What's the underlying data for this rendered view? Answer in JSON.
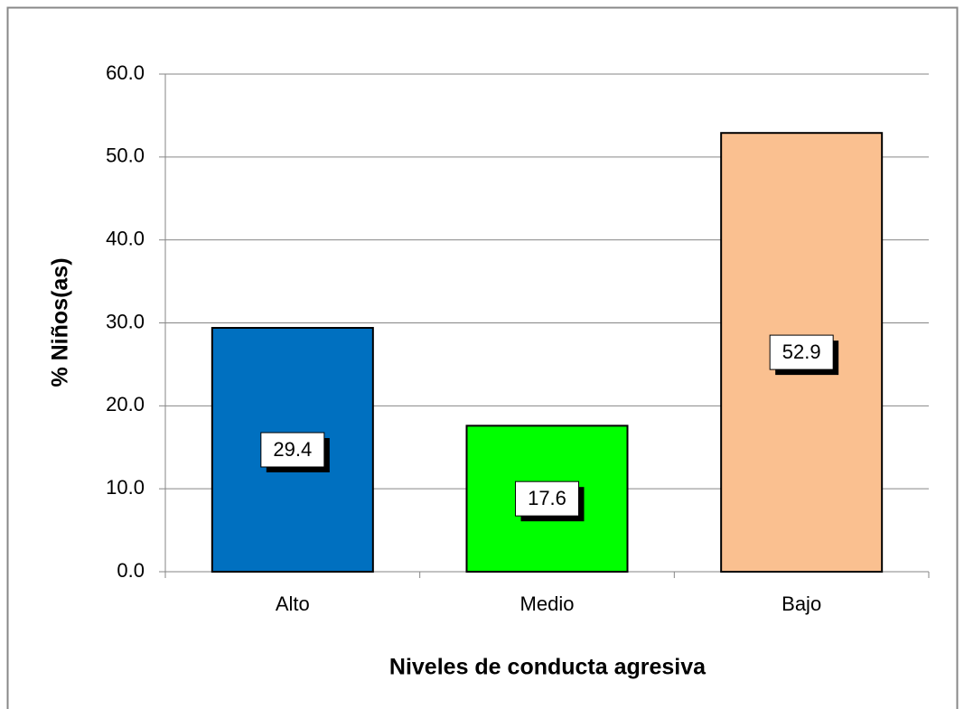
{
  "chart_data": {
    "type": "bar",
    "x_label": "Niveles de conducta agresiva",
    "y_label": "% Niños(as)",
    "categories": [
      "Alto",
      "Medio",
      "Bajo"
    ],
    "values": [
      29.4,
      17.6,
      52.9
    ],
    "colors": [
      "#0070c0",
      "#00ff00",
      "#fac090"
    ],
    "ylim": [
      0,
      60
    ],
    "yticks": [
      {
        "value": 0,
        "label": "0.0"
      },
      {
        "value": 10,
        "label": "10.0"
      },
      {
        "value": 20,
        "label": "20.0"
      },
      {
        "value": 30,
        "label": "30.0"
      },
      {
        "value": 40,
        "label": "40.0"
      },
      {
        "value": 50,
        "label": "50.0"
      },
      {
        "value": 60,
        "label": "60.0"
      }
    ],
    "grid": true
  }
}
